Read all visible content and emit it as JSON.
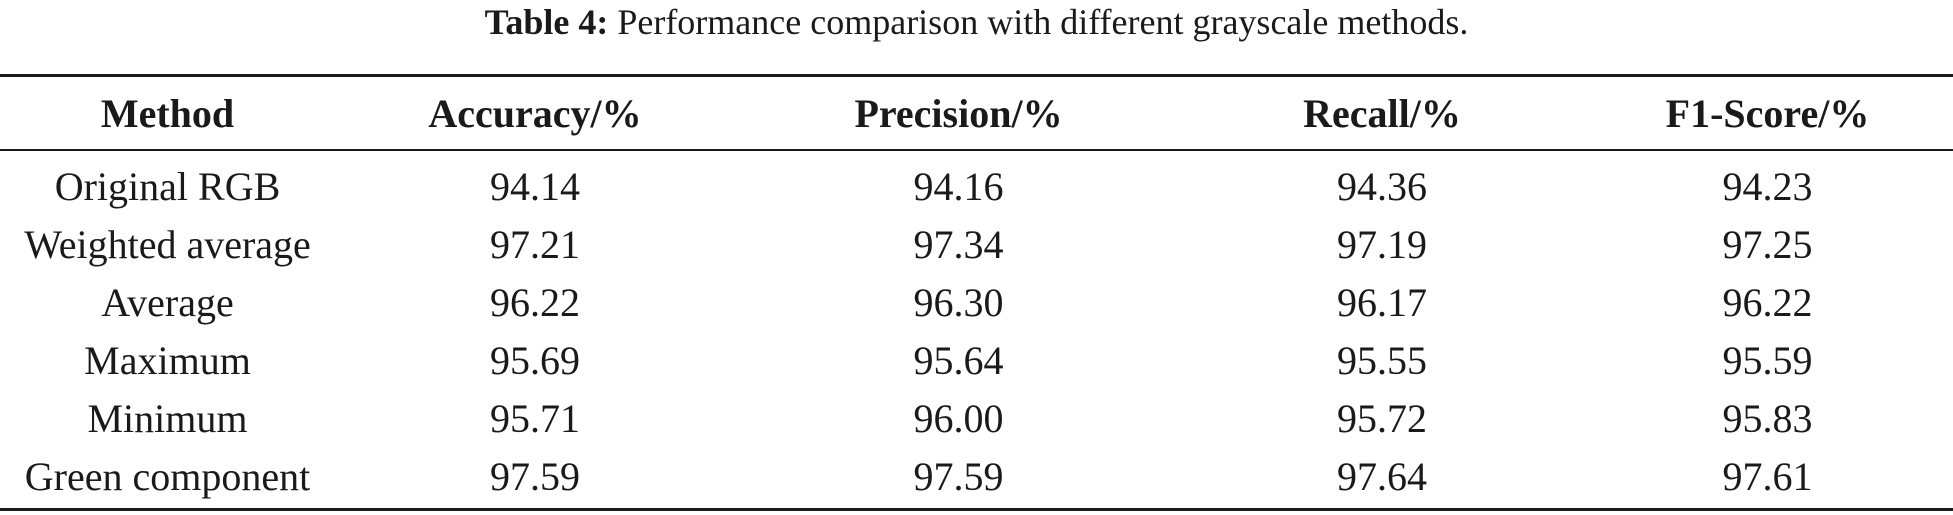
{
  "caption": {
    "label": "Table 4:",
    "text": "Performance comparison with different grayscale methods."
  },
  "table": {
    "headers": [
      "Method",
      "Accuracy/%",
      "Precision/%",
      "Recall/%",
      "F1-Score/%"
    ],
    "rows": [
      [
        "Original RGB",
        "94.14",
        "94.16",
        "94.36",
        "94.23"
      ],
      [
        "Weighted average",
        "97.21",
        "97.34",
        "97.19",
        "97.25"
      ],
      [
        "Average",
        "96.22",
        "96.30",
        "96.17",
        "96.22"
      ],
      [
        "Maximum",
        "95.69",
        "95.64",
        "95.55",
        "95.59"
      ],
      [
        "Minimum",
        "95.71",
        "96.00",
        "95.72",
        "95.83"
      ],
      [
        "Green component",
        "97.59",
        "97.59",
        "97.64",
        "97.61"
      ]
    ]
  }
}
